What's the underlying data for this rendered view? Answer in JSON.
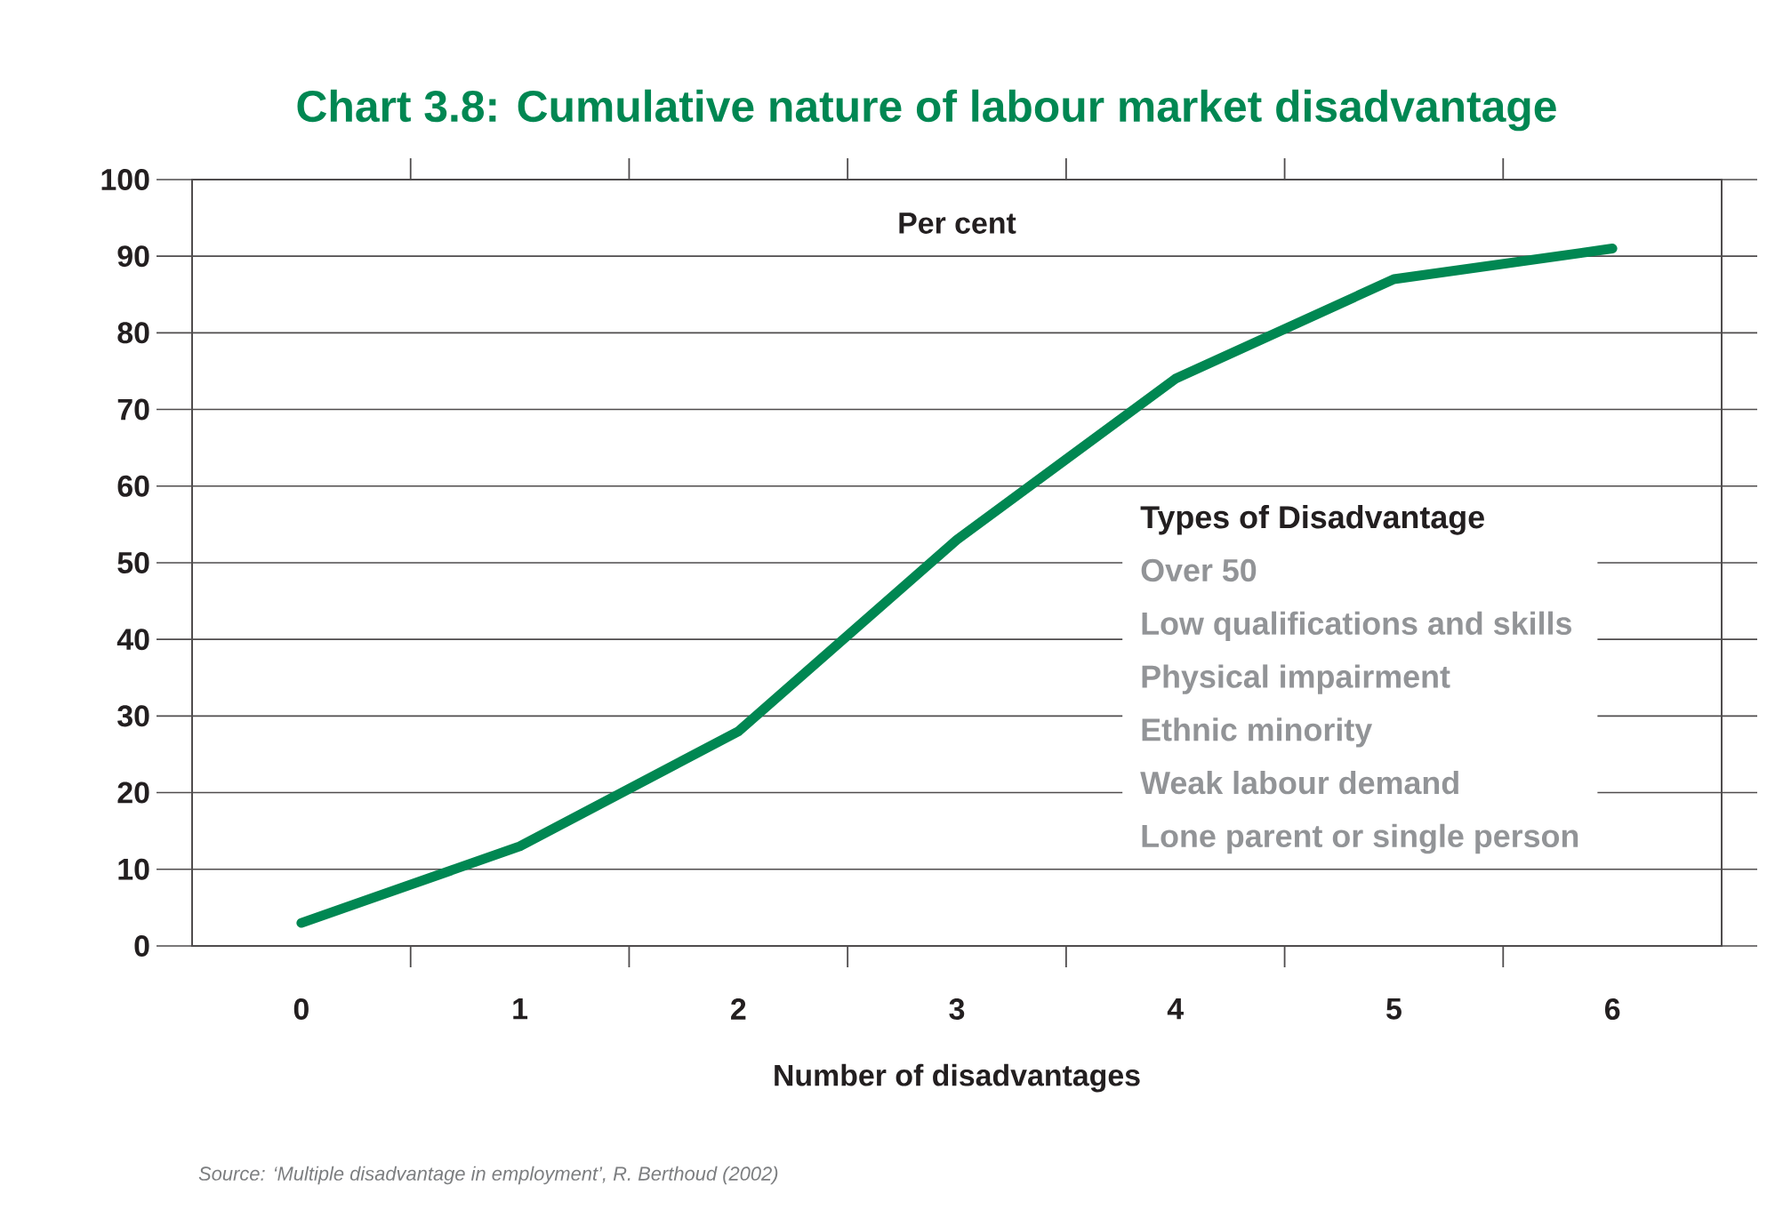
{
  "chart_data": {
    "type": "line",
    "title": "Chart 3.8: Cumulative nature of labour market disadvantage",
    "ylabel": "Per cent",
    "xlabel": "Number of disadvantages",
    "categories": [
      "0",
      "1",
      "2",
      "3",
      "4",
      "5",
      "6"
    ],
    "values": [
      3,
      13,
      28,
      53,
      74,
      87,
      91
    ],
    "color": "#008752",
    "ylim": [
      0,
      100
    ],
    "yticks": [
      0,
      10,
      20,
      30,
      40,
      50,
      60,
      70,
      80,
      90,
      100
    ],
    "grid": "y",
    "annotations": [
      "Source: ‘Multiple disadvantage in employment’, R. Berthoud (2002)",
      "Types of Disadvantage",
      "Over 50",
      "Low qualifications and skills",
      "Physical impairment",
      "Ethnic minority",
      "Weak labour demand",
      "Lone parent or single person"
    ]
  }
}
